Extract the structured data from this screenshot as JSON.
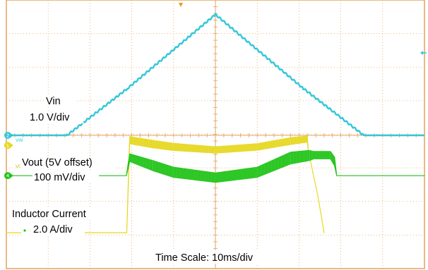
{
  "chart_data": {
    "type": "line",
    "title": "",
    "annotations": {
      "vin_name": "Vin",
      "vin_scale": "1.0 V/div",
      "vout_name": "Vout (5V offset)",
      "vout_scale": "100 mV/div",
      "il_name": "Inductor Current",
      "il_scale": "2.0 A/div",
      "timescale": "Time Scale: 10ms/div",
      "vin_tag": "VIN",
      "vout_tag": "VOUT"
    },
    "grid": true,
    "divisions": {
      "x": 10,
      "y": 8
    },
    "x_unit": "div",
    "x_range": [
      0,
      10
    ],
    "channel_markers": [
      {
        "id": "2",
        "level_div": 0,
        "color": "#33c7d9"
      },
      {
        "id": "1",
        "level_div": -0.3,
        "color": "#e6d821"
      },
      {
        "id": "4",
        "level_div": -1.2,
        "color": "#21c418"
      }
    ],
    "series": [
      {
        "name": "Vin",
        "color": "#33c7d9",
        "x": [
          0,
          1.45,
          2.9,
          5.0,
          7.1,
          8.55,
          10.0
        ],
        "y": [
          0,
          0,
          1.4,
          3.6,
          1.4,
          0,
          0
        ],
        "noise": 0.03
      },
      {
        "name": "Vout",
        "color": "#e6d821",
        "x": [
          0,
          2.88,
          2.95,
          3.5,
          4.0,
          5.0,
          6.0,
          6.8,
          7.2,
          7.22,
          7.45,
          7.6
        ],
        "y_upper": [
          -2.9,
          -2.9,
          -0.04,
          -0.15,
          -0.24,
          -0.34,
          -0.25,
          -0.07,
          -0.02,
          -0.45,
          -1.8,
          -2.9
        ],
        "y_lower": [
          -2.9,
          -2.9,
          -0.25,
          -0.37,
          -0.45,
          -0.53,
          -0.44,
          -0.27,
          -0.2,
          -0.45,
          -1.8,
          -2.9
        ]
      },
      {
        "name": "Inductor Current",
        "color": "#21c418",
        "x": [
          0,
          2.87,
          2.95,
          3.5,
          4.0,
          5.0,
          6.0,
          6.8,
          7.25,
          7.35,
          7.75,
          7.85,
          7.9,
          10.0
        ],
        "y_upper": [
          -1.2,
          -1.2,
          -0.55,
          -0.75,
          -0.95,
          -1.12,
          -0.95,
          -0.5,
          -0.45,
          -0.48,
          -0.48,
          -0.65,
          -1.2,
          -1.2
        ],
        "y_lower": [
          -1.2,
          -1.2,
          -0.78,
          -1.05,
          -1.25,
          -1.4,
          -1.25,
          -0.85,
          -0.75,
          -0.7,
          -0.7,
          -0.9,
          -1.2,
          -1.2
        ]
      }
    ]
  }
}
